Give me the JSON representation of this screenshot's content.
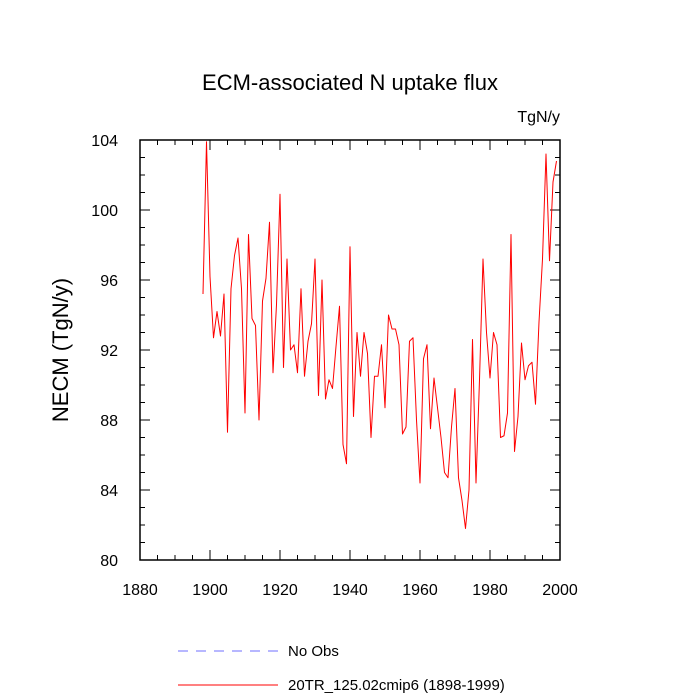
{
  "chart_data": {
    "type": "line",
    "title": "ECM-associated N uptake flux",
    "units_label": "TgN/y",
    "ylabel": "NECM  (TgN/y)",
    "xlabel": "",
    "xlim": [
      1880,
      2000
    ],
    "ylim": [
      80,
      104
    ],
    "xticks": [
      1880,
      1900,
      1920,
      1940,
      1960,
      1980,
      2000
    ],
    "yticks": [
      80,
      84,
      88,
      92,
      96,
      100,
      104
    ],
    "grid": false,
    "legend_position": "bottom",
    "legend": [
      {
        "label": "No Obs",
        "color": "#6f6fff",
        "style": "dashed"
      },
      {
        "label": "20TR_125.02cmip6 (1898-1999)",
        "color": "#ff0000",
        "style": "solid"
      }
    ],
    "series": [
      {
        "name": "20TR_125.02cmip6 (1898-1999)",
        "color": "#ff0000",
        "x": [
          1898,
          1899,
          1900,
          1901,
          1902,
          1903,
          1904,
          1905,
          1906,
          1907,
          1908,
          1909,
          1910,
          1911,
          1912,
          1913,
          1914,
          1915,
          1916,
          1917,
          1918,
          1919,
          1920,
          1921,
          1922,
          1923,
          1924,
          1925,
          1926,
          1927,
          1928,
          1929,
          1930,
          1931,
          1932,
          1933,
          1934,
          1935,
          1936,
          1937,
          1938,
          1939,
          1940,
          1941,
          1942,
          1943,
          1944,
          1945,
          1946,
          1947,
          1948,
          1949,
          1950,
          1951,
          1952,
          1953,
          1954,
          1955,
          1956,
          1957,
          1958,
          1959,
          1960,
          1961,
          1962,
          1963,
          1964,
          1965,
          1966,
          1967,
          1968,
          1969,
          1970,
          1971,
          1972,
          1973,
          1974,
          1975,
          1976,
          1977,
          1978,
          1979,
          1980,
          1981,
          1982,
          1983,
          1984,
          1985,
          1986,
          1987,
          1988,
          1989,
          1990,
          1991,
          1992,
          1993,
          1994,
          1995,
          1996,
          1997,
          1998,
          1999
        ],
        "values": [
          95.2,
          103.9,
          96.2,
          92.7,
          94.2,
          92.8,
          95.2,
          87.3,
          95.5,
          97.4,
          98.4,
          95.5,
          88.4,
          98.6,
          93.8,
          93.4,
          88.0,
          94.8,
          96.1,
          99.3,
          90.7,
          94.6,
          100.9,
          91.0,
          97.2,
          92.0,
          92.3,
          90.7,
          95.5,
          90.5,
          92.5,
          93.5,
          97.2,
          89.4,
          96.0,
          89.2,
          90.3,
          89.8,
          92.2,
          94.5,
          86.6,
          85.5,
          97.9,
          88.2,
          93.0,
          90.5,
          93.0,
          91.8,
          87.0,
          90.5,
          90.5,
          92.3,
          88.7,
          94.0,
          93.2,
          93.2,
          92.3,
          87.2,
          87.6,
          92.5,
          92.7,
          88.0,
          84.4,
          91.5,
          92.3,
          87.5,
          90.4,
          88.7,
          87.0,
          85.0,
          84.7,
          87.6,
          89.8,
          84.7,
          83.4,
          81.8,
          84.0,
          92.6,
          84.4,
          90.3,
          97.2,
          93.0,
          90.4,
          93.0,
          92.3,
          87.0,
          87.1,
          88.4,
          98.6,
          86.2,
          88.2,
          92.4,
          90.3,
          91.1,
          91.3,
          88.9,
          93.6,
          97.2,
          103.2,
          97.1,
          101.6,
          102.8
        ]
      }
    ]
  }
}
